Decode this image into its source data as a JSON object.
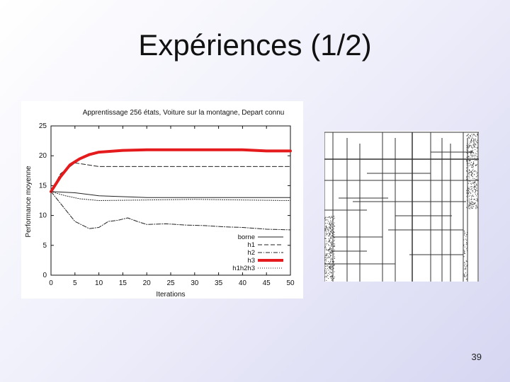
{
  "slide": {
    "title": "Expériences (1/2)",
    "page_number": "39"
  },
  "chart_data": {
    "type": "line",
    "title": "Apprentissage 256 états, Voiture sur la montagne, Depart connu",
    "xlabel": "Iterations",
    "ylabel": "Performance moyenne",
    "xlim": [
      0,
      50
    ],
    "ylim": [
      0,
      25
    ],
    "xticks": [
      0,
      5,
      10,
      15,
      20,
      25,
      30,
      35,
      40,
      45,
      50
    ],
    "yticks": [
      0,
      5,
      10,
      15,
      20,
      25
    ],
    "grid": false,
    "legend_position": "bottom-right",
    "series": [
      {
        "name": "borne",
        "color": "#222222",
        "style": "solid",
        "width": 1,
        "points": [
          [
            0,
            14
          ],
          [
            5,
            13.8
          ],
          [
            10,
            13.3
          ],
          [
            20,
            13
          ],
          [
            30,
            13
          ],
          [
            40,
            13
          ],
          [
            50,
            13
          ]
        ]
      },
      {
        "name": "h1",
        "color": "#222222",
        "style": "dash",
        "width": 1,
        "points": [
          [
            0,
            14
          ],
          [
            2,
            17
          ],
          [
            5,
            18.8
          ],
          [
            10,
            18.2
          ],
          [
            15,
            18.2
          ],
          [
            20,
            18.2
          ],
          [
            30,
            18.2
          ],
          [
            40,
            18.2
          ],
          [
            50,
            18.2
          ]
        ]
      },
      {
        "name": "h2",
        "color": "#222222",
        "style": "dashdot",
        "width": 1,
        "points": [
          [
            0,
            14
          ],
          [
            3,
            11
          ],
          [
            5,
            9
          ],
          [
            8,
            7.8
          ],
          [
            10,
            8
          ],
          [
            12,
            9
          ],
          [
            14,
            9.2
          ],
          [
            16,
            9.6
          ],
          [
            18,
            9
          ],
          [
            20,
            8.5
          ],
          [
            24,
            8.6
          ],
          [
            28,
            8.4
          ],
          [
            32,
            8.3
          ],
          [
            36,
            8.1
          ],
          [
            40,
            8
          ],
          [
            45,
            7.7
          ],
          [
            50,
            7.6
          ]
        ]
      },
      {
        "name": "h3",
        "color": "#e41a1c",
        "style": "solid",
        "width": 4,
        "points": [
          [
            0,
            14
          ],
          [
            2,
            16.5
          ],
          [
            4,
            18.5
          ],
          [
            6,
            19.5
          ],
          [
            8,
            20.2
          ],
          [
            10,
            20.6
          ],
          [
            15,
            20.9
          ],
          [
            20,
            21
          ],
          [
            25,
            21
          ],
          [
            30,
            21
          ],
          [
            35,
            21
          ],
          [
            40,
            21
          ],
          [
            45,
            20.8
          ],
          [
            50,
            20.8
          ]
        ]
      },
      {
        "name": "h1h2h3",
        "color": "#222222",
        "style": "dot",
        "width": 1,
        "points": [
          [
            0,
            14
          ],
          [
            3,
            13.3
          ],
          [
            6,
            12.8
          ],
          [
            10,
            12.5
          ],
          [
            20,
            12.6
          ],
          [
            30,
            12.7
          ],
          [
            40,
            12.6
          ],
          [
            50,
            12.5
          ]
        ]
      }
    ]
  },
  "tree_figure": {
    "description_label": "partition"
  }
}
